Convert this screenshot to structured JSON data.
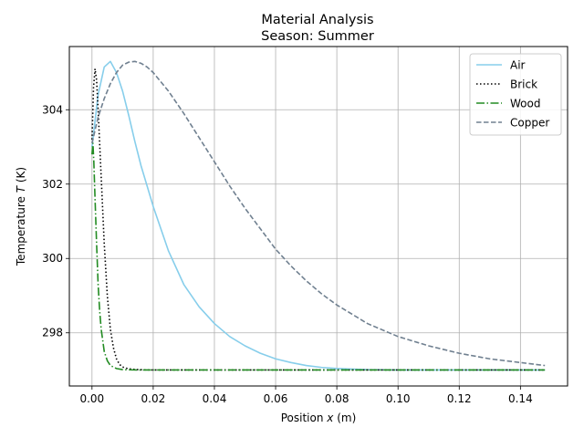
{
  "chart_data": {
    "type": "line",
    "title": "Material Analysis",
    "subtitle": "Season: Summer",
    "xlabel_text": "Position ",
    "xlabel_var": "x",
    "xlabel_unit": " (m)",
    "ylabel_text": "Temperature ",
    "ylabel_var": "T",
    "ylabel_unit": " (K)",
    "xlim": [
      -0.0074,
      0.1554
    ],
    "ylim": [
      296.57,
      305.7
    ],
    "x_ticks": [
      0.0,
      0.02,
      0.04,
      0.06,
      0.08,
      0.1,
      0.12,
      0.14
    ],
    "x_tick_labels": [
      "0.00",
      "0.02",
      "0.04",
      "0.06",
      "0.08",
      "0.10",
      "0.12",
      "0.14"
    ],
    "y_ticks": [
      298,
      300,
      302,
      304
    ],
    "y_tick_labels": [
      "298",
      "300",
      "302",
      "304"
    ],
    "grid": true,
    "legend_position": "top-right",
    "series": [
      {
        "name": "Air",
        "color": "#87ceeb",
        "dash": "solid",
        "x": [
          0.0,
          0.002,
          0.004,
          0.006,
          0.008,
          0.01,
          0.012,
          0.014,
          0.016,
          0.018,
          0.02,
          0.025,
          0.03,
          0.035,
          0.04,
          0.045,
          0.05,
          0.055,
          0.06,
          0.065,
          0.07,
          0.075,
          0.08,
          0.09,
          0.1,
          0.11,
          0.12,
          0.13,
          0.14,
          0.148
        ],
        "y": [
          303.0,
          304.4,
          305.15,
          305.3,
          305.0,
          304.5,
          303.85,
          303.15,
          302.5,
          301.95,
          301.4,
          300.2,
          299.3,
          298.7,
          298.25,
          297.9,
          297.65,
          297.45,
          297.3,
          297.2,
          297.12,
          297.07,
          297.04,
          297.01,
          297.0,
          297.0,
          297.0,
          297.0,
          297.0,
          297.0
        ]
      },
      {
        "name": "Brick",
        "color": "#000000",
        "dash": "dotted",
        "x": [
          0.0,
          0.0005,
          0.001,
          0.0015,
          0.002,
          0.003,
          0.004,
          0.005,
          0.006,
          0.007,
          0.008,
          0.009,
          0.01,
          0.012,
          0.015,
          0.02,
          0.04,
          0.08,
          0.12,
          0.148
        ],
        "y": [
          303.2,
          304.6,
          305.1,
          304.8,
          304.0,
          302.2,
          300.4,
          299.0,
          298.1,
          297.6,
          297.3,
          297.15,
          297.08,
          297.03,
          297.01,
          297.0,
          297.0,
          297.0,
          297.0,
          297.0
        ]
      },
      {
        "name": "Wood",
        "color": "#228b22",
        "dash": "dashdot",
        "x": [
          0.0,
          0.0003,
          0.0006,
          0.001,
          0.0015,
          0.002,
          0.0025,
          0.003,
          0.004,
          0.005,
          0.006,
          0.008,
          0.01,
          0.015,
          0.03,
          0.06,
          0.1,
          0.148
        ],
        "y": [
          302.8,
          303.1,
          302.6,
          301.6,
          300.4,
          299.3,
          298.6,
          298.1,
          297.5,
          297.25,
          297.12,
          297.04,
          297.01,
          297.0,
          297.0,
          297.0,
          297.0,
          297.0
        ]
      },
      {
        "name": "Copper",
        "color": "#708090",
        "dash": "dashed",
        "x": [
          0.0,
          0.002,
          0.004,
          0.006,
          0.008,
          0.01,
          0.012,
          0.014,
          0.016,
          0.018,
          0.02,
          0.025,
          0.03,
          0.035,
          0.04,
          0.045,
          0.05,
          0.055,
          0.06,
          0.065,
          0.07,
          0.075,
          0.08,
          0.09,
          0.1,
          0.11,
          0.12,
          0.13,
          0.14,
          0.148
        ],
        "y": [
          303.1,
          303.8,
          304.3,
          304.7,
          305.0,
          305.2,
          305.28,
          305.3,
          305.25,
          305.15,
          305.0,
          304.5,
          303.9,
          303.25,
          302.6,
          301.95,
          301.35,
          300.8,
          300.25,
          299.8,
          299.4,
          299.05,
          298.75,
          298.25,
          297.9,
          297.65,
          297.45,
          297.3,
          297.2,
          297.12
        ]
      }
    ]
  }
}
